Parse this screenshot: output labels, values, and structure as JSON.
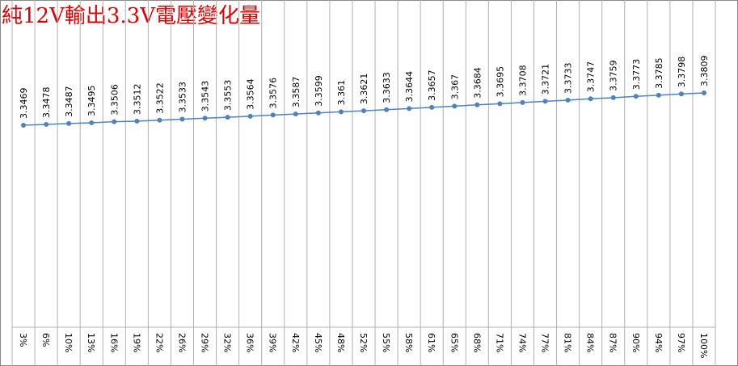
{
  "chart_data": {
    "type": "line",
    "title": "純12V輸出3.3V電壓變化量",
    "categories": [
      "3%",
      "6%",
      "10%",
      "13%",
      "16%",
      "19%",
      "22%",
      "26%",
      "29%",
      "32%",
      "36%",
      "39%",
      "42%",
      "45%",
      "48%",
      "52%",
      "55%",
      "58%",
      "61%",
      "65%",
      "68%",
      "71%",
      "74%",
      "77%",
      "81%",
      "84%",
      "87%",
      "90%",
      "94%",
      "97%",
      "100%"
    ],
    "values": [
      3.3469,
      3.3478,
      3.3487,
      3.3495,
      3.3506,
      3.3512,
      3.3522,
      3.3533,
      3.3543,
      3.3553,
      3.3564,
      3.3576,
      3.3587,
      3.3599,
      3.361,
      3.3621,
      3.3633,
      3.3644,
      3.3657,
      3.367,
      3.3684,
      3.3695,
      3.3708,
      3.3721,
      3.3733,
      3.3747,
      3.3759,
      3.3773,
      3.3785,
      3.3798,
      3.3809
    ],
    "color": "#4f81bd"
  }
}
